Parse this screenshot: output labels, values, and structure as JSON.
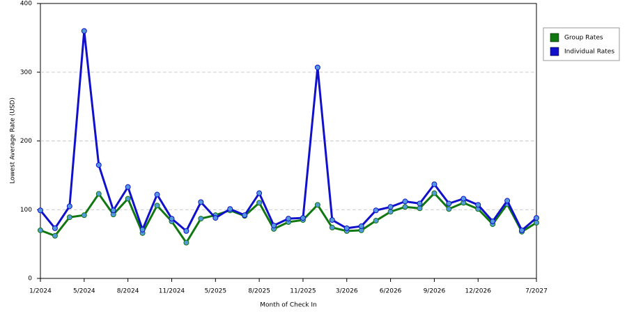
{
  "chart_data": {
    "type": "line",
    "x_label": "Month of Check In",
    "y_label": "Lowest Average Rate (USD)",
    "categories": [
      "1/2024",
      null,
      null,
      "5/2024",
      null,
      null,
      "8/2024",
      null,
      null,
      "11/2024",
      null,
      null,
      "5/2025",
      null,
      null,
      "8/2025",
      null,
      null,
      "11/2025",
      null,
      null,
      "3/2026",
      null,
      null,
      "6/2026",
      null,
      null,
      "9/2026",
      null,
      null,
      "12/2026",
      null,
      null,
      null,
      "7/2027"
    ],
    "series": [
      {
        "name": "Group Rates",
        "color": "#117711",
        "values": [
          70,
          62,
          89,
          92,
          123,
          93,
          116,
          66,
          106,
          83,
          52,
          87,
          92,
          99,
          91,
          110,
          72,
          82,
          85,
          107,
          74,
          69,
          70,
          84,
          97,
          104,
          102,
          124,
          101,
          110,
          101,
          79,
          108,
          68,
          81
        ]
      },
      {
        "name": "Individual Rates",
        "color": "#1111cc",
        "values": [
          99,
          73,
          105,
          360,
          165,
          99,
          133,
          71,
          122,
          87,
          69,
          111,
          88,
          101,
          92,
          124,
          77,
          87,
          88,
          307,
          85,
          73,
          76,
          99,
          104,
          112,
          109,
          137,
          109,
          116,
          107,
          83,
          113,
          70,
          88
        ]
      }
    ],
    "ylim": [
      0,
      400
    ],
    "yticks": [
      0,
      100,
      200,
      300,
      400
    ],
    "grid": true,
    "legend": "right"
  }
}
